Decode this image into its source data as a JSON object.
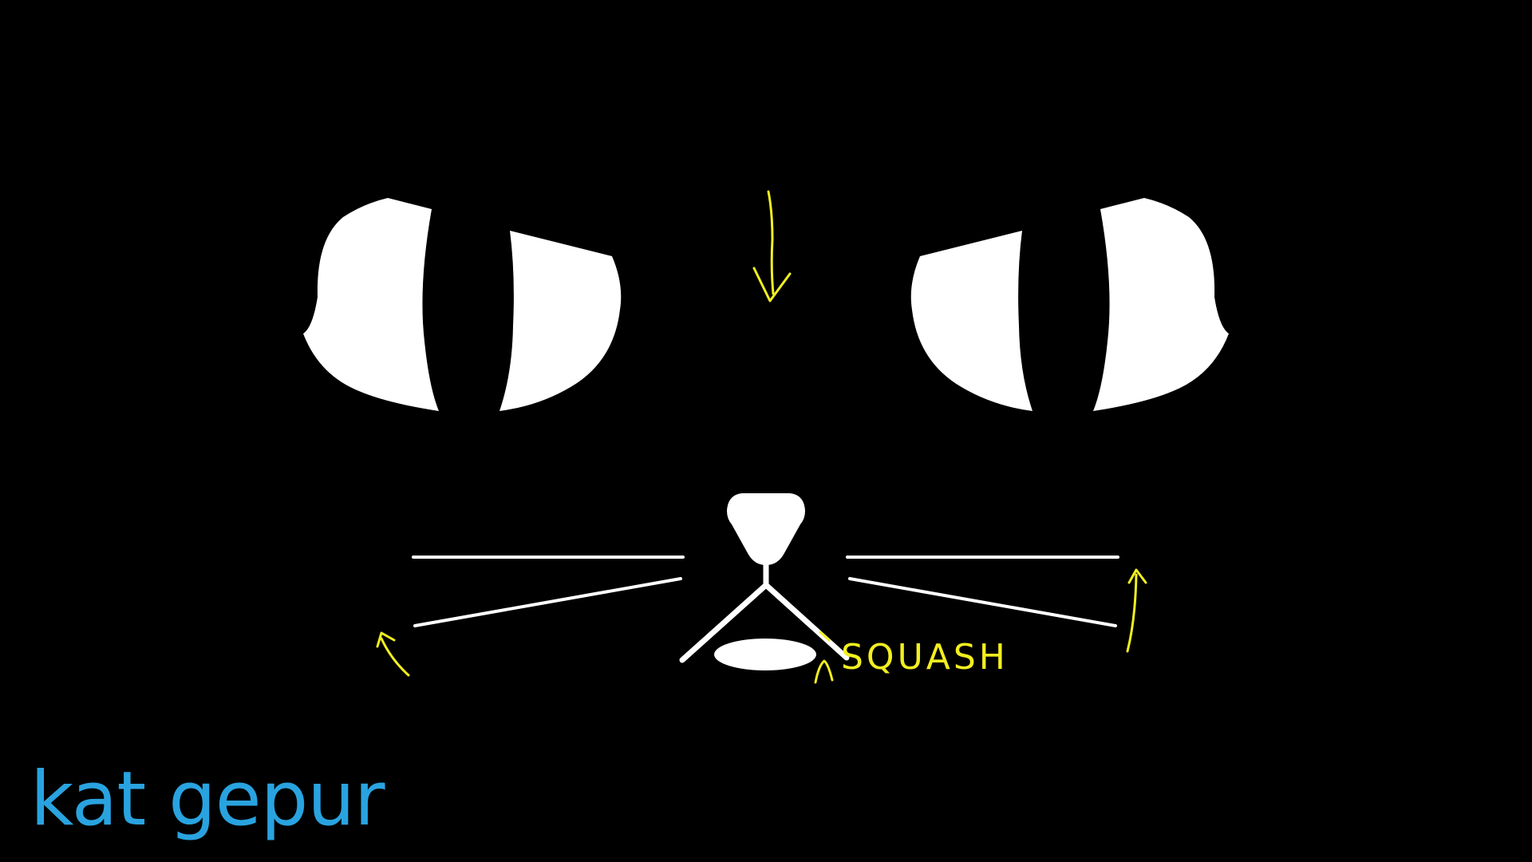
{
  "canvas": {
    "background_color": "#000000",
    "face_color": "#ffffff",
    "annotation_color": "#f2ef1f",
    "caption_color": "#29a3e0"
  },
  "caption": {
    "text": "kat gepur"
  },
  "annotations": {
    "squash_label": "SQUASH"
  },
  "icons": {
    "left_eye": "cat-eye-icon",
    "right_eye": "cat-eye-icon",
    "nose": "cat-nose-icon",
    "arrow_down": "arrow-down-icon",
    "arrow_up_left": "arrow-up-icon",
    "arrow_up_right": "arrow-up-icon",
    "arrow_up_mouth": "arrow-up-icon"
  }
}
